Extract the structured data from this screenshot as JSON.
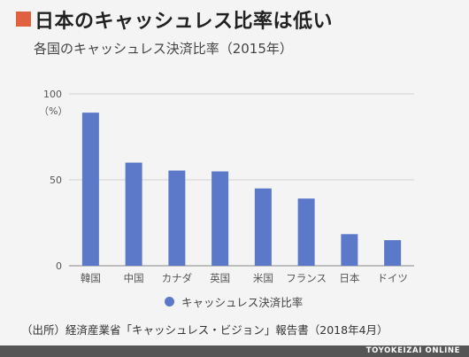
{
  "header": {
    "title": "日本のキャッシュレス比率は低い",
    "subtitle": "各国のキャッシュレス決済比率（2015年）"
  },
  "chart_data": {
    "type": "bar",
    "categories": [
      "韓国",
      "中国",
      "カナダ",
      "英国",
      "米国",
      "フランス",
      "日本",
      "ドイツ"
    ],
    "series": [
      {
        "name": "キャッシュレス決済比率",
        "values": [
          89.1,
          60.0,
          55.4,
          54.9,
          45.0,
          39.1,
          18.4,
          14.9
        ],
        "color": "#5b78c9"
      }
    ],
    "ylim": [
      0,
      100
    ],
    "yticks": [
      0,
      50,
      100
    ],
    "ylabel": "（%）",
    "grid": true,
    "legend_position": "bottom"
  },
  "source": "（出所）経済産業省「キャッシュレス・ビジョン」報告書（2018年4月）",
  "footer": {
    "brand": "TOYOKEIZAI ONLINE"
  }
}
